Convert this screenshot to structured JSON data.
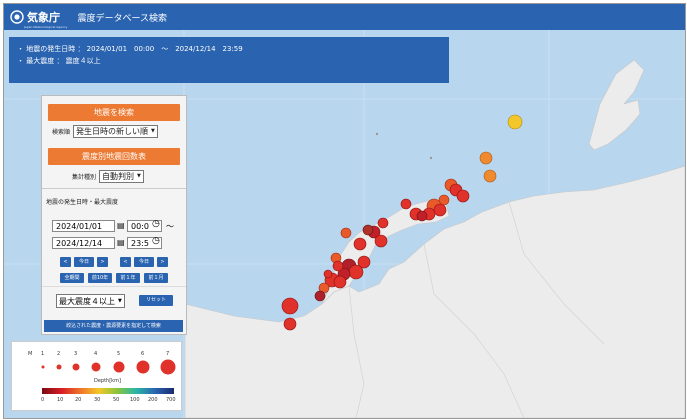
{
  "header": {
    "logo_text": "気象庁",
    "logo_sub": "Japan Meteorological Agency",
    "title": "震度データベース検索"
  },
  "conditions": {
    "line1": "・ 地震の発生日時 ： 2024/01/01　00:00　～　2024/12/14　23:59",
    "line2": "・ 最大震度 ： 震度４以上"
  },
  "panel": {
    "search_button": "地震を検索",
    "sort_label": "検索順",
    "sort_value": "発生日時の新しい順",
    "table_button": "震度別地震回数表",
    "agg_label": "集計種別",
    "agg_value": "自動判別",
    "section_title": "地震の発生日時・最大震度",
    "start_date": "2024/01/01",
    "start_time": "00:0",
    "end_date": "2024/12/14",
    "end_time": "23:5",
    "tilde": "～",
    "nav": {
      "prev": "<",
      "today": "今日",
      "next": ">"
    },
    "quick": [
      "全期間",
      "前10年",
      "前１年",
      "前１月"
    ],
    "intensity_value": "最大震度４以上",
    "reset": "リセット",
    "search_sub": "絞込された震度・震源要素を指定して検索"
  },
  "legend": {
    "m_label": "M",
    "magnitudes": [
      "1",
      "2",
      "3",
      "4",
      "5",
      "6",
      "7"
    ],
    "depth_label": "Depth[km]",
    "depth_ticks": [
      "0",
      "10",
      "20",
      "30",
      "50",
      "100",
      "200",
      "700"
    ]
  },
  "colors": {
    "header_blue": "#2a63b0",
    "button_orange": "#ec7a32",
    "sea": "#b8d6ee",
    "land": "#ececec",
    "quake_red": "#e0312a",
    "quake_orange": "#ef7a2a",
    "quake_yellow": "#f3c62a"
  }
}
